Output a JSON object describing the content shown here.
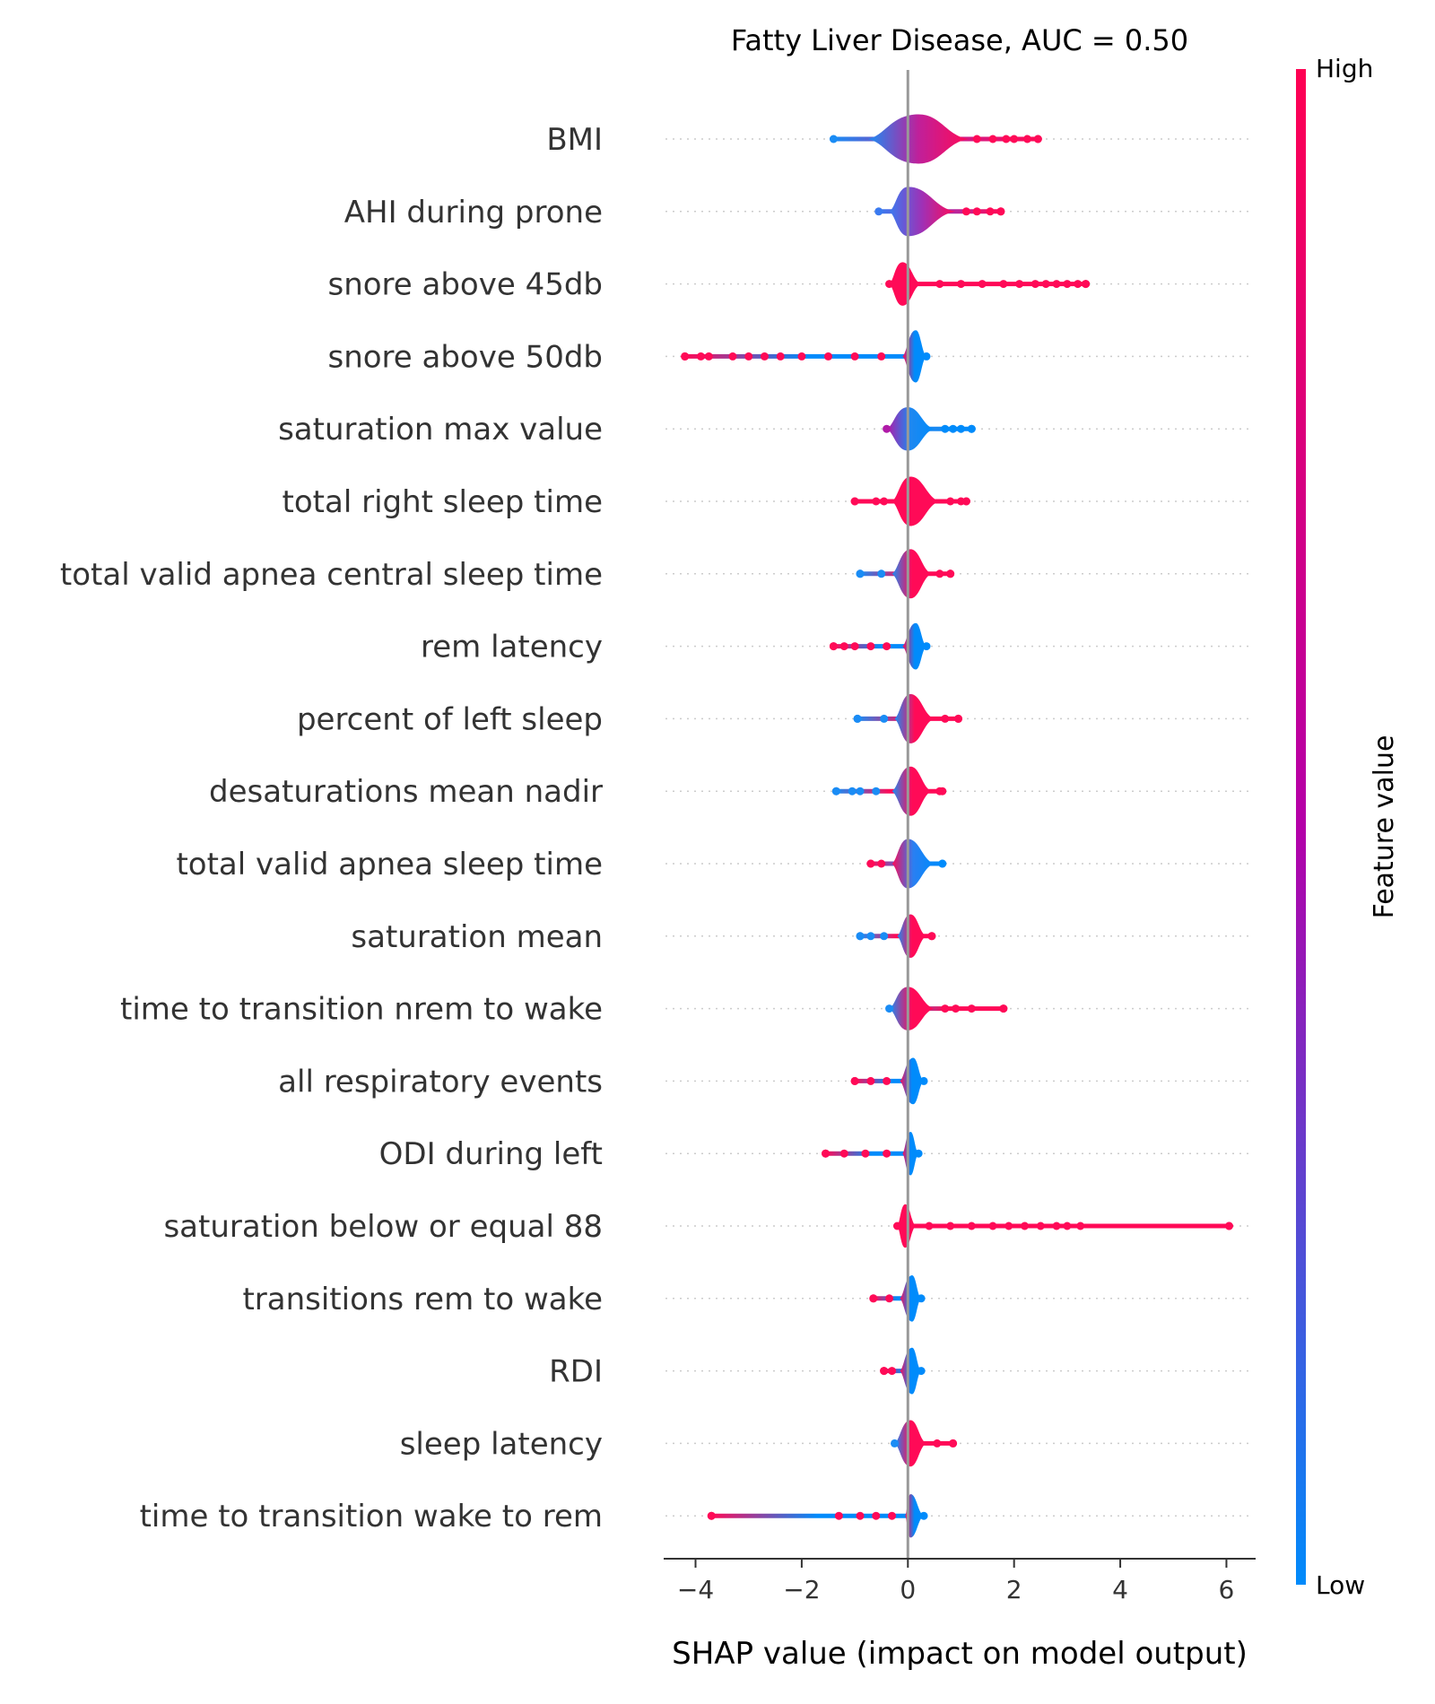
{
  "chart_data": {
    "type": "beeswarm",
    "title": "Fatty Liver Disease, AUC =  0.50",
    "xlabel": "SHAP value (impact on model output)",
    "xlim": [
      -4.6,
      6.55
    ],
    "xticks": [
      -4,
      -2,
      0,
      2,
      4,
      6
    ],
    "xtick_labels": [
      "−4",
      "−2",
      "0",
      "2",
      "4",
      "6"
    ],
    "colorbar": {
      "label": "Feature value",
      "high_label": "High",
      "low_label": "Low",
      "high_color": "#ff0052",
      "mid_color": "#b400a8",
      "low_color": "#008bfb"
    },
    "features": [
      {
        "name": "BMI",
        "min": -1.4,
        "max": 2.45,
        "core": [
          -0.75,
          1.15
        ],
        "hw": 0.34,
        "center": 0.2,
        "color_mid": "#c0209a",
        "left_color": "#1a8cf5",
        "right_color": "#ff0a57",
        "tail_right": [
          1.3,
          1.6,
          1.85,
          2.0,
          2.25,
          2.45
        ],
        "tail_left": []
      },
      {
        "name": "AHI during prone",
        "min": -0.55,
        "max": 1.75,
        "core": [
          -0.35,
          0.9
        ],
        "hw": 0.34,
        "center": 0.0,
        "color_mid": "#a030b5",
        "left_color": "#3a7af0",
        "right_color": "#ff0a57",
        "tail_right": [
          1.1,
          1.3,
          1.55,
          1.75
        ],
        "tail_left": []
      },
      {
        "name": "snore above 45db",
        "min": -0.35,
        "max": 3.35,
        "core": [
          -0.35,
          0.25
        ],
        "hw": 0.3,
        "center": -0.1,
        "color_mid": "#ff0a57",
        "left_color": "#ff0a57",
        "right_color": "#ff0a57",
        "tail_right": [
          0.6,
          1.0,
          1.4,
          1.8,
          2.1,
          2.4,
          2.6,
          2.8,
          3.0,
          3.2,
          3.35
        ],
        "tail_left": []
      },
      {
        "name": "snore above 50db",
        "min": -4.2,
        "max": 0.35,
        "core": [
          -0.1,
          0.35
        ],
        "hw": 0.36,
        "center": 0.15,
        "color_mid": "#008bfb",
        "left_color": "#ff0a57",
        "right_color": "#008bfb",
        "tail_right": [],
        "tail_left": [
          -0.5,
          -1.0,
          -1.5,
          -2.0,
          -2.4,
          -2.7,
          -3.0,
          -3.3,
          -3.75,
          -3.9,
          -4.2
        ]
      },
      {
        "name": "saturation max value",
        "min": -0.4,
        "max": 1.2,
        "core": [
          -0.4,
          0.5
        ],
        "hw": 0.3,
        "center": 0.0,
        "color_mid": "#1e88f0",
        "left_color": "#b01aa8",
        "right_color": "#008bfb",
        "tail_right": [
          0.7,
          0.85,
          1.0,
          1.2
        ],
        "tail_left": []
      },
      {
        "name": "total right sleep time",
        "min": -1.0,
        "max": 1.1,
        "core": [
          -0.3,
          0.6
        ],
        "hw": 0.34,
        "center": 0.05,
        "color_mid": "#ff0a57",
        "left_color": "#ff0a57",
        "right_color": "#ff0a57",
        "tail_right": [
          0.8,
          1.0,
          1.1
        ],
        "tail_left": [
          -0.45,
          -0.6,
          -1.0
        ]
      },
      {
        "name": "total valid apnea central sleep time",
        "min": -0.9,
        "max": 0.8,
        "core": [
          -0.3,
          0.45
        ],
        "hw": 0.34,
        "center": 0.05,
        "color_mid": "#ff0a57",
        "left_color": "#1a8cf5",
        "right_color": "#ff0a57",
        "tail_right": [
          0.6,
          0.8
        ],
        "tail_left": [
          -0.5,
          -0.9
        ]
      },
      {
        "name": "rem latency",
        "min": -1.4,
        "max": 0.35,
        "core": [
          -0.1,
          0.35
        ],
        "hw": 0.32,
        "center": 0.15,
        "color_mid": "#008bfb",
        "left_color": "#ff0a57",
        "right_color": "#008bfb",
        "tail_right": [],
        "tail_left": [
          -0.4,
          -0.7,
          -1.0,
          -1.2,
          -1.4
        ]
      },
      {
        "name": "percent of left sleep",
        "min": -0.95,
        "max": 0.95,
        "core": [
          -0.25,
          0.5
        ],
        "hw": 0.34,
        "center": 0.05,
        "color_mid": "#ff0a57",
        "left_color": "#1a8cf5",
        "right_color": "#ff0a57",
        "tail_right": [
          0.7,
          0.95
        ],
        "tail_left": [
          -0.45,
          -0.95
        ]
      },
      {
        "name": "desaturations mean nadir",
        "min": -1.35,
        "max": 0.65,
        "core": [
          -0.3,
          0.45
        ],
        "hw": 0.34,
        "center": 0.05,
        "color_mid": "#ff0a57",
        "left_color": "#1a8cf5",
        "right_color": "#ff0a57",
        "tail_right": [
          0.6
        ],
        "tail_left": [
          -0.6,
          -0.9,
          -1.05,
          -1.35
        ]
      },
      {
        "name": "total valid apnea sleep time",
        "min": -0.7,
        "max": 0.65,
        "core": [
          -0.3,
          0.5
        ],
        "hw": 0.34,
        "center": 0.0,
        "color_mid": "#2a7ff2",
        "left_color": "#ff0a57",
        "right_color": "#008bfb",
        "tail_right": [
          0.65
        ],
        "tail_left": [
          -0.5,
          -0.7
        ]
      },
      {
        "name": "saturation mean",
        "min": -0.9,
        "max": 0.45,
        "core": [
          -0.2,
          0.35
        ],
        "hw": 0.3,
        "center": 0.05,
        "color_mid": "#ff0a57",
        "left_color": "#1a8cf5",
        "right_color": "#ff0a57",
        "tail_right": [
          0.45
        ],
        "tail_left": [
          -0.45,
          -0.7,
          -0.9
        ]
      },
      {
        "name": "time to transition nrem to wake",
        "min": -0.35,
        "max": 1.8,
        "core": [
          -0.35,
          0.5
        ],
        "hw": 0.3,
        "center": 0.0,
        "color_mid": "#ff0a57",
        "left_color": "#1a8cf5",
        "right_color": "#ff0a57",
        "tail_right": [
          0.7,
          0.9,
          1.2,
          1.8
        ],
        "tail_left": []
      },
      {
        "name": "all respiratory events",
        "min": -1.0,
        "max": 0.3,
        "core": [
          -0.15,
          0.3
        ],
        "hw": 0.32,
        "center": 0.1,
        "color_mid": "#008bfb",
        "left_color": "#ff0a57",
        "right_color": "#008bfb",
        "tail_right": [],
        "tail_left": [
          -0.4,
          -0.7,
          -1.0
        ]
      },
      {
        "name": "ODI during left",
        "min": -1.55,
        "max": 0.2,
        "core": [
          -0.1,
          0.2
        ],
        "hw": 0.3,
        "center": 0.05,
        "color_mid": "#008bfb",
        "left_color": "#ff0a57",
        "right_color": "#008bfb",
        "tail_right": [],
        "tail_left": [
          -0.4,
          -0.8,
          -1.2,
          -1.55
        ]
      },
      {
        "name": "saturation below or equal 88",
        "min": -0.2,
        "max": 6.05,
        "core": [
          -0.2,
          0.15
        ],
        "hw": 0.3,
        "center": -0.05,
        "color_mid": "#ff0a57",
        "left_color": "#ff0a57",
        "right_color": "#ff0a57",
        "tail_right": [
          0.4,
          0.8,
          1.2,
          1.6,
          1.9,
          2.2,
          2.5,
          2.8,
          3.0,
          3.25,
          6.05
        ],
        "tail_left": []
      },
      {
        "name": "transitions rem to wake",
        "min": -0.65,
        "max": 0.25,
        "core": [
          -0.15,
          0.25
        ],
        "hw": 0.32,
        "center": 0.08,
        "color_mid": "#008bfb",
        "left_color": "#ff0a57",
        "right_color": "#008bfb",
        "tail_right": [],
        "tail_left": [
          -0.35,
          -0.65
        ]
      },
      {
        "name": "RDI",
        "min": -0.45,
        "max": 0.25,
        "core": [
          -0.15,
          0.25
        ],
        "hw": 0.32,
        "center": 0.08,
        "color_mid": "#008bfb",
        "left_color": "#ff0a57",
        "right_color": "#008bfb",
        "tail_right": [],
        "tail_left": [
          -0.3,
          -0.45
        ]
      },
      {
        "name": "sleep latency",
        "min": -0.25,
        "max": 0.85,
        "core": [
          -0.25,
          0.35
        ],
        "hw": 0.32,
        "center": 0.05,
        "color_mid": "#ff0a57",
        "left_color": "#1a8cf5",
        "right_color": "#ff0a57",
        "tail_right": [
          0.55,
          0.85
        ],
        "tail_left": []
      },
      {
        "name": "time to transition wake to rem",
        "min": -3.7,
        "max": 0.3,
        "core": [
          -0.05,
          0.3
        ],
        "hw": 0.3,
        "center": 0.05,
        "color_mid": "#008bfb",
        "left_color": "#ff0a57",
        "right_color": "#008bfb",
        "tail_right": [],
        "tail_left": [
          -0.3,
          -0.6,
          -0.9,
          -1.3,
          -3.7
        ]
      }
    ]
  }
}
